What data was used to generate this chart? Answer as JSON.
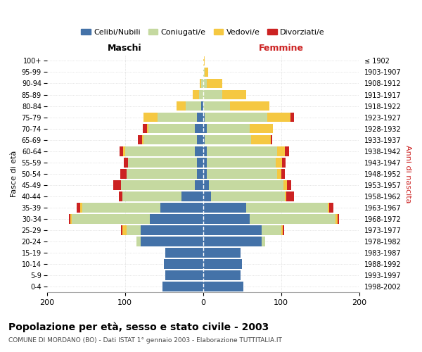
{
  "age_groups": [
    "0-4",
    "5-9",
    "10-14",
    "15-19",
    "20-24",
    "25-29",
    "30-34",
    "35-39",
    "40-44",
    "45-49",
    "50-54",
    "55-59",
    "60-64",
    "65-69",
    "70-74",
    "75-79",
    "80-84",
    "85-89",
    "90-94",
    "95-99",
    "100+"
  ],
  "birth_years": [
    "1998-2002",
    "1993-1997",
    "1988-1992",
    "1983-1987",
    "1978-1982",
    "1973-1977",
    "1968-1972",
    "1963-1967",
    "1958-1962",
    "1953-1957",
    "1948-1952",
    "1943-1947",
    "1938-1942",
    "1933-1937",
    "1928-1932",
    "1923-1927",
    "1918-1922",
    "1913-1917",
    "1908-1912",
    "1903-1907",
    "≤ 1902"
  ],
  "maschi_celibi": [
    52,
    48,
    50,
    48,
    80,
    80,
    68,
    55,
    28,
    10,
    8,
    8,
    10,
    8,
    10,
    8,
    2,
    0,
    0,
    0,
    0
  ],
  "maschi_coniugati": [
    0,
    0,
    0,
    0,
    5,
    18,
    100,
    100,
    75,
    95,
    90,
    88,
    90,
    68,
    60,
    50,
    20,
    5,
    2,
    0,
    0
  ],
  "maschi_vedovi": [
    0,
    0,
    0,
    0,
    0,
    5,
    2,
    2,
    0,
    0,
    0,
    0,
    2,
    2,
    2,
    18,
    12,
    8,
    2,
    0,
    0
  ],
  "maschi_divorziati": [
    0,
    0,
    0,
    0,
    0,
    2,
    2,
    5,
    5,
    10,
    8,
    5,
    5,
    5,
    5,
    0,
    0,
    0,
    0,
    0,
    0
  ],
  "femmine_celibi": [
    52,
    48,
    50,
    48,
    75,
    75,
    60,
    55,
    10,
    8,
    5,
    5,
    5,
    2,
    5,
    2,
    0,
    0,
    0,
    0,
    0
  ],
  "femmine_coniugati": [
    0,
    0,
    0,
    0,
    5,
    25,
    110,
    105,
    95,
    95,
    90,
    88,
    90,
    60,
    55,
    80,
    35,
    25,
    5,
    2,
    0
  ],
  "femmine_vedovi": [
    0,
    0,
    0,
    0,
    0,
    2,
    2,
    2,
    2,
    5,
    5,
    8,
    10,
    25,
    30,
    30,
    50,
    30,
    20,
    5,
    2
  ],
  "femmine_divorziati": [
    0,
    0,
    0,
    0,
    0,
    2,
    2,
    5,
    10,
    5,
    5,
    5,
    5,
    2,
    0,
    5,
    0,
    0,
    0,
    0,
    0
  ],
  "colors": {
    "celibi": "#4472a8",
    "coniugati": "#c5d9a0",
    "vedovi": "#f5c842",
    "divorziati": "#cc2222"
  },
  "title": "Popolazione per età, sesso e stato civile - 2003",
  "subtitle": "COMUNE DI MORDANO (BO) - Dati ISTAT 1° gennaio 2003 - Elaborazione TUTTITALIA.IT",
  "xlabel_left": "Maschi",
  "xlabel_right": "Femmine",
  "ylabel_left": "Fasce di età",
  "ylabel_right": "Anni di nascita",
  "xlim": 200,
  "background_color": "#ffffff",
  "plot_bg_color": "#ffffff",
  "grid_color": "#bbbbbb",
  "bar_height": 0.85
}
